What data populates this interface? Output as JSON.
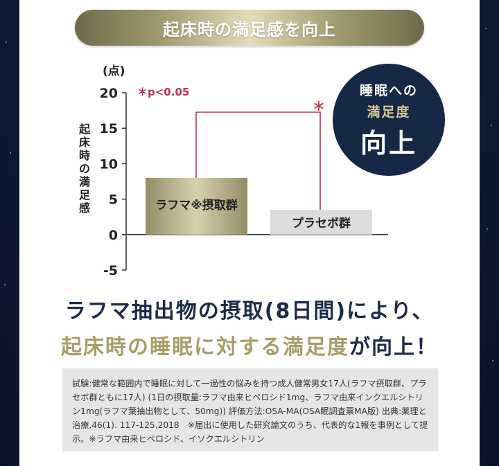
{
  "header": {
    "title": "起床時の満足感を向上"
  },
  "badge": {
    "line1": "睡眠への",
    "line2": "満足度",
    "line3": "向上"
  },
  "headline": {
    "line1": "ラフマ抽出物の摂取(8日間)により、",
    "line2_highlight": "起床時の睡眠に対する満足度",
    "line2_rest": "が向上！"
  },
  "note": {
    "text": "試験:健常な範囲内で睡眠に対して一過性の悩みを持つ成人健常男女17人(ラフマ摂取群、プラセボ群ともに17人) (1日の摂取量:ラフマ由来ヒペロシド1mg、ラフマ由来インクエルシトリン1mg(ラフマ葉抽出物として、50mg)) 評価方法:OSA-MA(OSA眠調査票MA版) 出典:薬理と治療,46(1). 117-125,2018　※届出に使用した研究論文のうち、代表的な1報を事例として提示。※ラフマ由来ヒペロシド、イソクエルシトリン"
  },
  "chart_data": {
    "type": "bar",
    "unit_label": "(点)",
    "ylabel": "起床時の満足感",
    "yticks": [
      20,
      15,
      10,
      5,
      0,
      -5
    ],
    "ylim": [
      -5,
      20
    ],
    "categories": [
      "ラフマ※摂取群",
      "プラセボ群"
    ],
    "values": [
      8,
      3.5
    ],
    "significance_label": "＊p<0.05",
    "significance_marker": "＊",
    "colors": {
      "treatment": "#b0a984",
      "placebo": "#dcdcdc",
      "significance": "#c0304a",
      "badge": "#152846"
    }
  }
}
